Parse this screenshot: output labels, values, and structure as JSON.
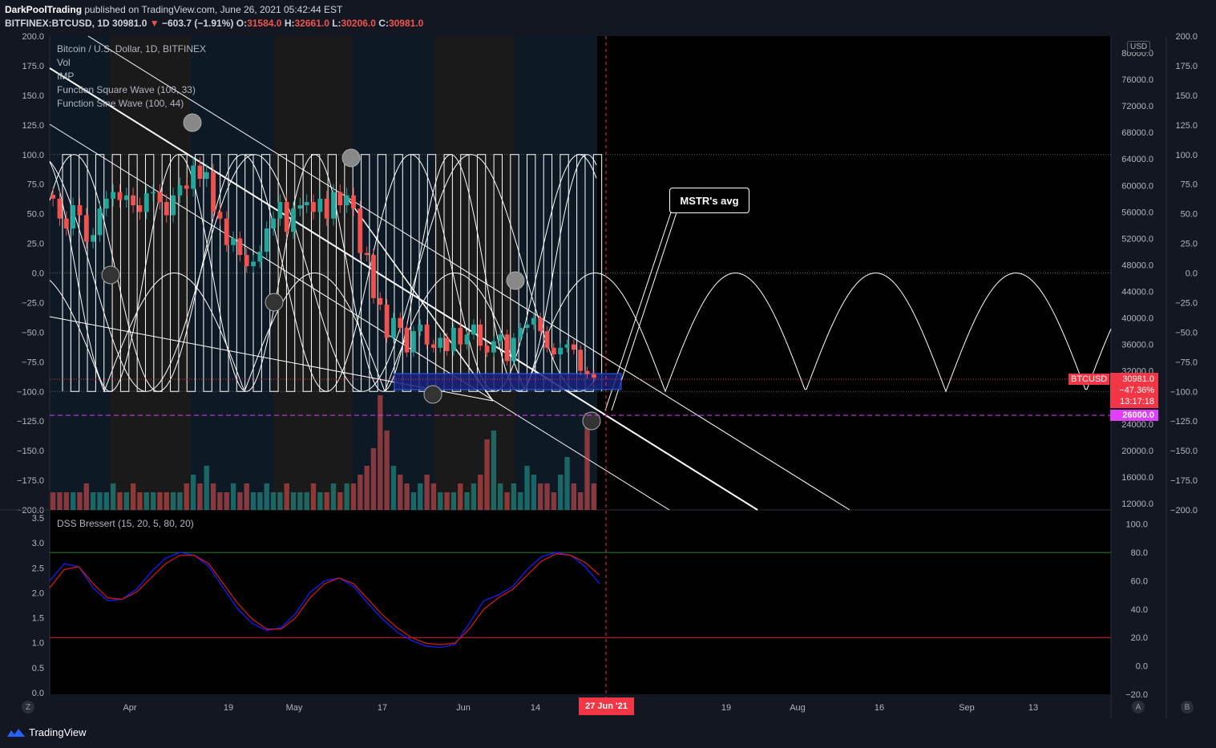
{
  "header": {
    "publisher": "DarkPoolTrading",
    "published_text": "published on TradingView.com, June 26, 2021 05:42:44 EST",
    "symbol": "BITFINEX:BTCUSD, 1D",
    "last": "30981.0",
    "change": "−603.7 (−1.91%)",
    "o_label": "O:",
    "o_val": "31584.0",
    "h_label": "H:",
    "h_val": "32661.0",
    "l_label": "L:",
    "l_val": "30206.0",
    "c_label": "C:",
    "c_val": "30981.0"
  },
  "legend": {
    "main": "Bitcoin / U.S. Dollar, 1D, BITFINEX",
    "vol": "Vol",
    "imp": "IMP",
    "square": "Function Square Wave (100, 33)",
    "sine": "Function Sine Wave (100, 44)",
    "dss": "DSS Bressert (15, 20, 5, 80, 20)"
  },
  "callout": "MSTR's avg",
  "usd_label": "USD",
  "price_label": {
    "ticker": "BTCUSD",
    "price": "30981.0",
    "pct": "−47.36%",
    "countdown": "13:17:18"
  },
  "level_label": "26000.0",
  "date_label": "27 Jun '21",
  "footer": {
    "brand": "TradingView"
  },
  "nav": {
    "left": "Z",
    "mid": "A",
    "right": "B"
  },
  "colors": {
    "up": "#26a69a",
    "down": "#ef5350",
    "accent_red": "#f23645",
    "level": "#e040fb",
    "dss_k": "#1a1aff",
    "dss_d": "#cc1a1a",
    "ob_line": "#2e7d32",
    "os_line": "#d32f2f"
  },
  "chart_data": [
    {
      "type": "line",
      "title": "Bitcoin / U.S. Dollar, 1D, BITFINEX",
      "left_axis_ticks": [
        "200.0",
        "175.0",
        "150.0",
        "125.0",
        "100.0",
        "75.0",
        "50.0",
        "25.0",
        "0.0",
        "−25.0",
        "−50.0",
        "−75.0",
        "−100.0",
        "−125.0",
        "−150.0",
        "−175.0",
        "−200.0"
      ],
      "right_price_ticks": [
        "80000.0",
        "76000.0",
        "72000.0",
        "68000.0",
        "64000.0",
        "60000.0",
        "56000.0",
        "52000.0",
        "48000.0",
        "44000.0",
        "40000.0",
        "36000.0",
        "32000.0",
        "24000.0",
        "20000.0",
        "16000.0",
        "12000.0"
      ],
      "right_osc_ticks": [
        "200.0",
        "175.0",
        "150.0",
        "125.0",
        "100.0",
        "75.0",
        "50.0",
        "25.0",
        "0.0",
        "−25.0",
        "−50.0",
        "−75.0",
        "−100.0",
        "−125.0",
        "−150.0",
        "−175.0",
        "−200.0"
      ],
      "x_ticks": [
        "Apr",
        "19",
        "May",
        "17",
        "Jun",
        "14",
        "27 Jun '21",
        "19",
        "Aug",
        "16",
        "Sep",
        "13"
      ],
      "price_close": [
        58000,
        55000,
        53500,
        57000,
        55500,
        51500,
        52500,
        56500,
        58000,
        59000,
        57800,
        58500,
        57000,
        56000,
        58800,
        59000,
        57500,
        55500,
        58500,
        60000,
        59500,
        63000,
        61000,
        62000,
        56000,
        55000,
        51000,
        52000,
        49500,
        47800,
        48500,
        50000,
        53500,
        55000,
        57500,
        53000,
        56500,
        57000,
        57500,
        56000,
        58000,
        55000,
        59000,
        57000,
        58500,
        56500,
        49800,
        49500,
        43000,
        42000,
        37000,
        40000,
        38500,
        34800,
        38000,
        39000,
        36000,
        35500,
        37000,
        35000,
        38500,
        36000,
        37500,
        39000,
        35800,
        34800,
        36500,
        37500,
        33500,
        37000,
        38500,
        39000,
        40000,
        38000,
        35500,
        34500,
        35500,
        36000,
        35200,
        32000,
        31500,
        30981
      ],
      "price_range": [
        12000,
        82000
      ],
      "square_wave": {
        "period": 100,
        "param": 33,
        "range": [
          -100,
          100
        ]
      },
      "sine_wave": {
        "period": 100,
        "param": 44,
        "range": [
          -100,
          100
        ]
      },
      "horizontal_level": 26000
    },
    {
      "type": "line",
      "title": "DSS Bressert (15, 20, 5, 80, 20)",
      "left_axis_ticks": [
        "3.5",
        "3.0",
        "2.5",
        "2.0",
        "1.5",
        "1.0",
        "0.5",
        "0.0"
      ],
      "right_axis_ticks": [
        "100.0",
        "80.0",
        "60.0",
        "40.0",
        "20.0",
        "0.0",
        "−20.0"
      ],
      "ylim": [
        -20,
        110
      ],
      "overbought": 80,
      "oversold": 20,
      "series": [
        {
          "values": [
            60,
            72,
            70,
            55,
            46,
            47,
            54,
            66,
            76,
            80,
            78,
            70,
            55,
            40,
            30,
            25,
            27,
            37,
            52,
            60,
            62,
            56,
            44,
            33,
            24,
            18,
            14,
            13,
            15,
            30,
            46,
            50,
            56,
            68,
            77,
            80,
            78,
            70,
            58
          ]
        },
        {
          "values": [
            55,
            68,
            70,
            58,
            48,
            47,
            52,
            62,
            72,
            78,
            78,
            72,
            58,
            44,
            33,
            26,
            26,
            34,
            48,
            58,
            62,
            58,
            47,
            36,
            27,
            20,
            16,
            15,
            16,
            26,
            40,
            48,
            54,
            64,
            74,
            79,
            78,
            73,
            64
          ]
        }
      ]
    }
  ]
}
